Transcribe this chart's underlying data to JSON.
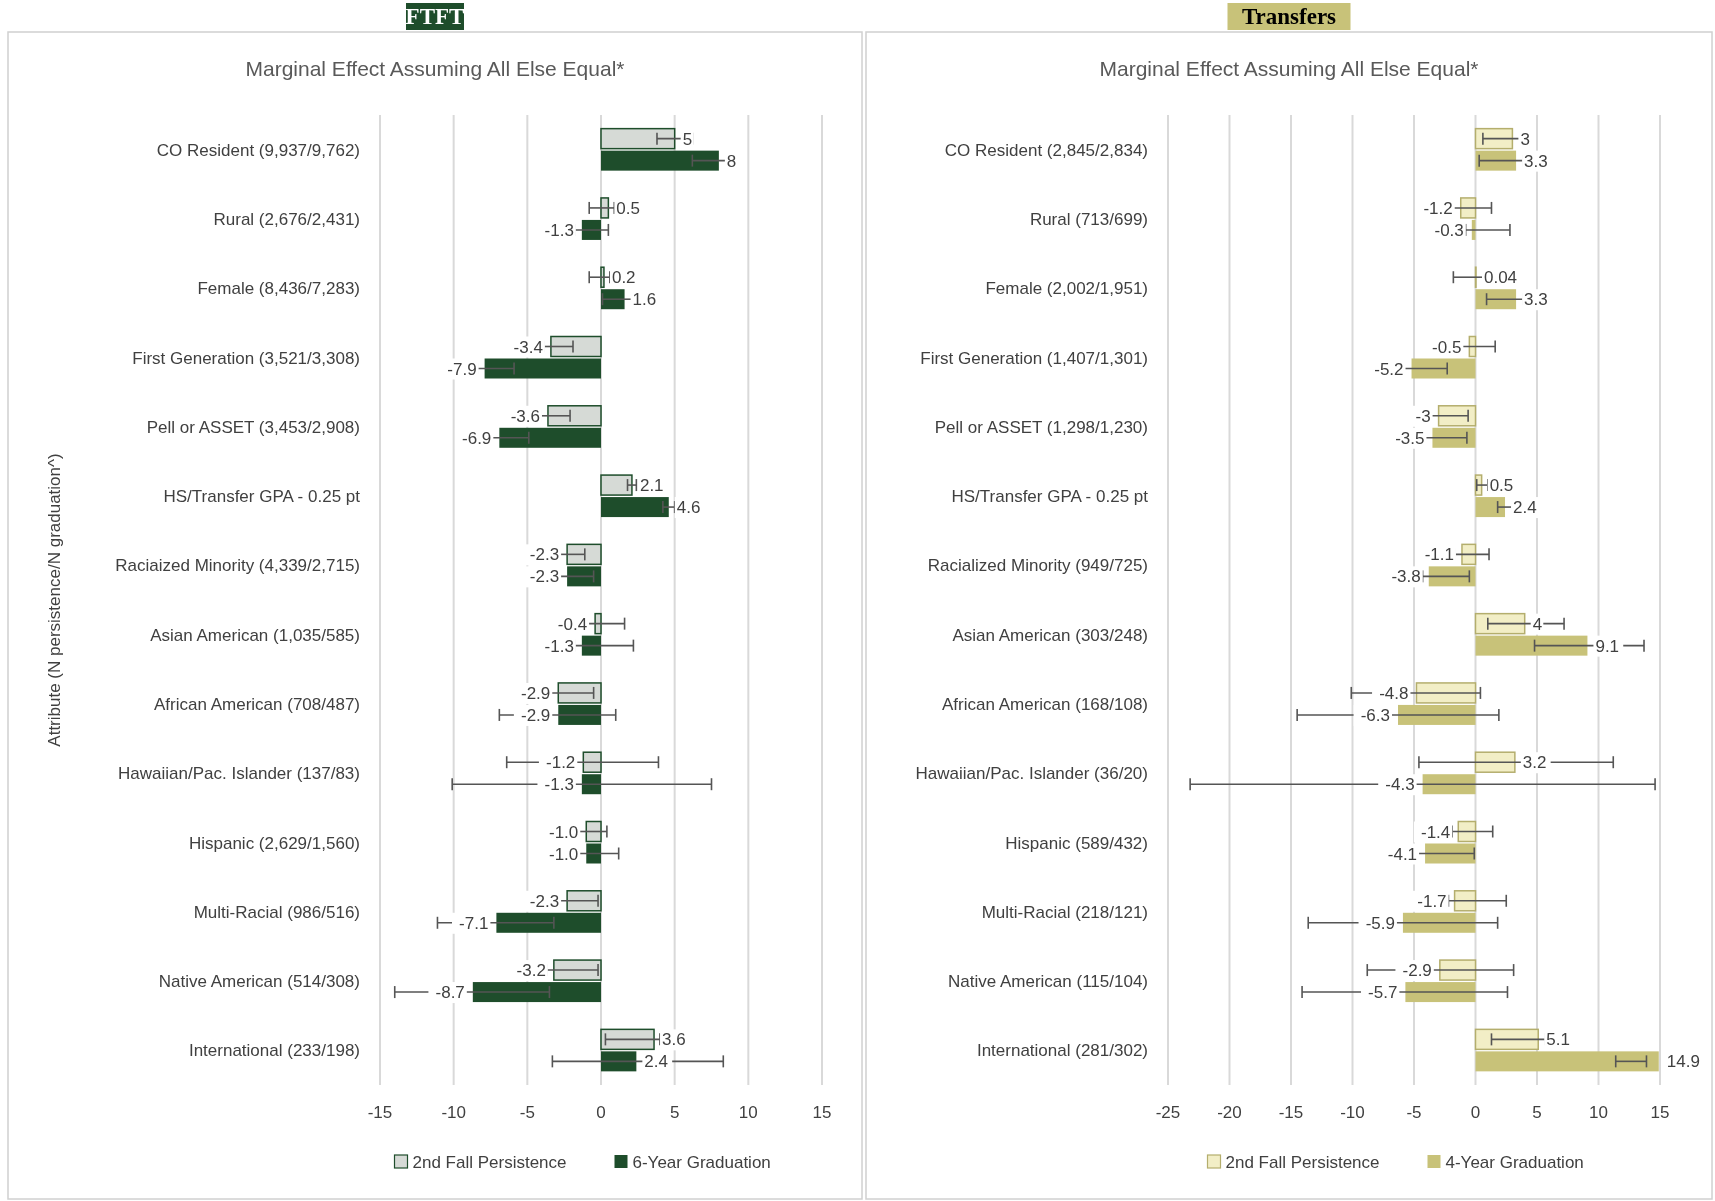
{
  "chart_data": [
    {
      "type": "bar",
      "orientation": "horizontal",
      "title": "FTFT",
      "subtitle": "Marginal Effect Assuming All Else Equal*",
      "ylabel": "Attribute (N persistence/N graduation^)",
      "categories": [
        "CO Resident (9,937/9,762)",
        "Rural (2,676/2,431)",
        "Female (8,436/7,283)",
        "First Generation (3,521/3,308)",
        "Pell or ASSET (3,453/2,908)",
        "HS/Transfer GPA - 0.25 pt",
        "Raciaized Minority (4,339/2,715)",
        "Asian American (1,035/585)",
        "African American (708/487)",
        "Hawaiian/Pac. Islander (137/83)",
        "Hispanic (2,629/1,560)",
        "Multi-Racial (986/516)",
        "Native American (514/308)",
        "International (233/198)"
      ],
      "series": [
        {
          "name": "2nd Fall Persistence",
          "color": "#d6dad6",
          "values": [
            5,
            0.5,
            0.2,
            -3.4,
            -3.6,
            2.1,
            -2.3,
            -0.4,
            -2.9,
            -1.2,
            -1.0,
            -2.3,
            -3.2,
            3.6
          ],
          "value_labels": [
            "5",
            "0.5",
            "0.2",
            "-3.4",
            "-3.6",
            "2.1",
            "-2.3",
            "-0.4",
            "-2.9",
            "-1.2",
            "-1.0",
            "-2.3",
            "-3.2",
            "3.6"
          ],
          "errors": [
            [
              3.8,
              6.2
            ],
            [
              -0.8,
              0.9
            ],
            [
              -0.8,
              0.6
            ],
            [
              -3.9,
              -1.9
            ],
            [
              -4.1,
              -2.1
            ],
            [
              1.8,
              2.4
            ],
            [
              -2.8,
              -1.1
            ],
            [
              -0.9,
              1.6
            ],
            [
              -3.4,
              -0.5
            ],
            [
              -6.4,
              3.9
            ],
            [
              -1.5,
              0.4
            ],
            [
              -2.8,
              -0.2
            ],
            [
              -3.7,
              -0.2
            ],
            [
              0.3,
              4.0
            ]
          ]
        },
        {
          "name": "6-Year Graduation",
          "color": "#1e4d2b",
          "values": [
            8,
            -1.3,
            1.6,
            -7.9,
            -6.9,
            4.6,
            -2.3,
            -1.3,
            -2.9,
            -1.3,
            -1.0,
            -7.1,
            -8.7,
            2.4
          ],
          "value_labels": [
            "8",
            "-1.3",
            "1.6",
            "-7.9",
            "-6.9",
            "4.6",
            "-2.3",
            "-1.3",
            "-2.9",
            "-1.3",
            "-1.0",
            "-7.1",
            "-8.7",
            "2.4"
          ],
          "errors": [
            [
              6.2,
              8.5
            ],
            [
              -1.8,
              0.5
            ],
            [
              0.1,
              2.1
            ],
            [
              -8.4,
              -5.9
            ],
            [
              -7.4,
              -4.9
            ],
            [
              4.2,
              5.0
            ],
            [
              -2.8,
              -0.5
            ],
            [
              -1.8,
              2.2
            ],
            [
              -6.9,
              1.0
            ],
            [
              -10.1,
              7.5
            ],
            [
              -1.5,
              1.2
            ],
            [
              -11.1,
              -3.2
            ],
            [
              -14.0,
              -3.5
            ],
            [
              -3.3,
              8.3
            ]
          ]
        }
      ],
      "xlim": [
        -15,
        15
      ],
      "xticks": [
        -15,
        -10,
        -5,
        0,
        5,
        10,
        15
      ],
      "grid": "x",
      "legend": "bottom"
    },
    {
      "type": "bar",
      "orientation": "horizontal",
      "title": "Transfers",
      "subtitle": "Marginal Effect Assuming All Else Equal*",
      "categories": [
        "CO Resident (2,845/2,834)",
        "Rural (713/699)",
        "Female (2,002/1,951)",
        "First Generation (1,407/1,301)",
        "Pell or ASSET (1,298/1,230)",
        "HS/Transfer GPA - 0.25 pt",
        "Racialized Minority (949/725)",
        "Asian American (303/248)",
        "African American (168/108)",
        "Hawaiian/Pac. Islander (36/20)",
        "Hispanic (589/432)",
        "Multi-Racial (218/121)",
        "Native American (115/104)",
        "International (281/302)"
      ],
      "series": [
        {
          "name": "2nd Fall Persistence",
          "color": "#f2eec6",
          "values": [
            3,
            -1.2,
            0.04,
            -0.5,
            -3,
            0.5,
            -1.1,
            4,
            -4.8,
            3.2,
            -1.4,
            -1.7,
            -2.9,
            5.1
          ],
          "value_labels": [
            "3",
            "-1.2",
            "0.04",
            "-0.5",
            "-3",
            "0.5",
            "-1.1",
            "4",
            "-4.8",
            "3.2",
            "-1.4",
            "-1.7",
            "-2.9",
            "5.1"
          ],
          "errors": [
            [
              0.6,
              3.6
            ],
            [
              -3.6,
              1.3
            ],
            [
              -1.8,
              0.7
            ],
            [
              -1.1,
              1.6
            ],
            [
              -4.4,
              -0.6
            ],
            [
              0.1,
              1.0
            ],
            [
              -1.7,
              1.1
            ],
            [
              1.0,
              7.2
            ],
            [
              -10.1,
              0.4
            ],
            [
              -4.6,
              11.2
            ],
            [
              -1.9,
              1.4
            ],
            [
              -2.2,
              2.5
            ],
            [
              -8.8,
              3.1
            ],
            [
              1.3,
              5.7
            ]
          ]
        },
        {
          "name": "4-Year Graduation",
          "color": "#c8c279",
          "values": [
            3.3,
            -0.3,
            3.3,
            -5.2,
            -3.5,
            2.4,
            -3.8,
            9.1,
            -6.3,
            -4.3,
            -4.1,
            -5.9,
            -5.7,
            14.9
          ],
          "value_labels": [
            "3.3",
            "-0.3",
            "3.3",
            "-5.2",
            "-3.5",
            "2.4",
            "-3.8",
            "9.1",
            "-6.3",
            "-4.3",
            "-4.1",
            "-5.9",
            "-5.7",
            "14.9"
          ],
          "errors": [
            [
              0.3,
              3.9
            ],
            [
              -0.8,
              2.8
            ],
            [
              0.9,
              3.9
            ],
            [
              -5.8,
              -2.3
            ],
            [
              -5.0,
              -0.7
            ],
            [
              1.8,
              3.0
            ],
            [
              -4.3,
              -0.5
            ],
            [
              4.8,
              13.7
            ],
            [
              -14.5,
              1.9
            ],
            [
              -23.2,
              14.6
            ],
            [
              -4.7,
              -0.1
            ],
            [
              -13.6,
              1.8
            ],
            [
              -14.1,
              2.6
            ],
            [
              11.4,
              13.9
            ]
          ]
        }
      ],
      "xlim": [
        -25,
        15
      ],
      "xticks": [
        -25,
        -20,
        -15,
        -10,
        -5,
        0,
        5,
        10,
        15
      ],
      "grid": "x",
      "legend": "bottom"
    }
  ]
}
